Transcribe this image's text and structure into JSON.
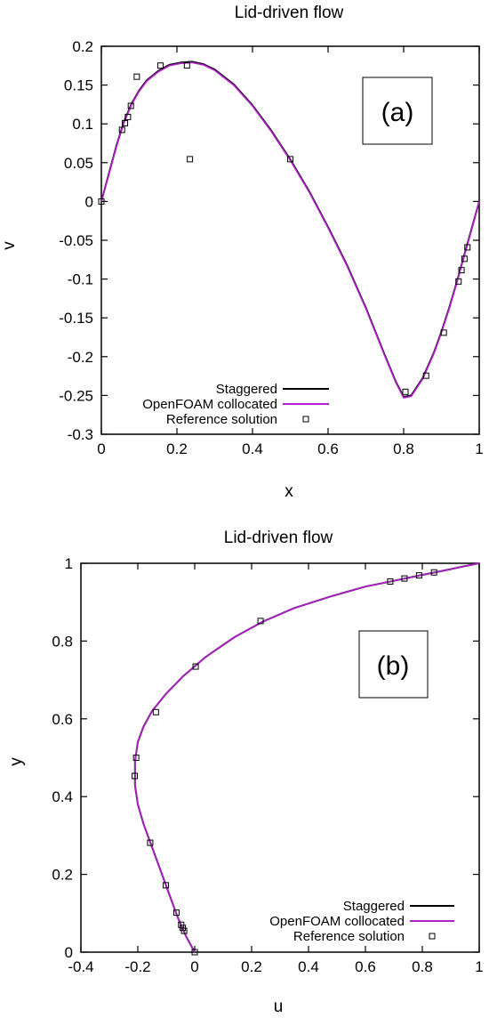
{
  "chart_data": [
    {
      "type": "line",
      "title": "Lid-driven flow",
      "xlabel": "x",
      "ylabel": "v",
      "panel_label": "(a)",
      "xlim": [
        0,
        1
      ],
      "ylim": [
        -0.3,
        0.2
      ],
      "x_ticks": [
        0,
        0.2,
        0.4,
        0.6,
        0.8,
        1
      ],
      "x_tick_labels": [
        "0",
        "0.2",
        "0.4",
        "0.6",
        "0.8",
        "1"
      ],
      "y_ticks": [
        -0.3,
        -0.25,
        -0.2,
        -0.15,
        -0.1,
        -0.05,
        0,
        0.05,
        0.1,
        0.15,
        0.2
      ],
      "y_tick_labels": [
        "-0.3",
        "-0.25",
        "-0.2",
        "-0.15",
        "-0.1",
        "-0.05",
        "0",
        "0.05",
        "0.1",
        "0.15",
        "0.2"
      ],
      "grid": false,
      "legend_position": "bottom-center",
      "series": [
        {
          "name": "Staggered",
          "color": "#000000",
          "style": "line",
          "x": [
            0,
            0.02,
            0.04,
            0.06,
            0.08,
            0.1,
            0.12,
            0.15,
            0.18,
            0.21,
            0.24,
            0.27,
            0.3,
            0.35,
            0.4,
            0.45,
            0.5,
            0.55,
            0.6,
            0.65,
            0.7,
            0.75,
            0.78,
            0.8,
            0.82,
            0.85,
            0.88,
            0.9,
            0.92,
            0.94,
            0.96,
            0.98,
            1
          ],
          "y": [
            0,
            0.036,
            0.072,
            0.103,
            0.126,
            0.143,
            0.156,
            0.168,
            0.176,
            0.179,
            0.18,
            0.177,
            0.17,
            0.151,
            0.124,
            0.091,
            0.054,
            0.013,
            -0.033,
            -0.082,
            -0.137,
            -0.198,
            -0.233,
            -0.252,
            -0.25,
            -0.228,
            -0.195,
            -0.168,
            -0.138,
            -0.105,
            -0.07,
            -0.035,
            0
          ]
        },
        {
          "name": "OpenFOAM collocated",
          "color": "#b020c8",
          "style": "line",
          "x": [
            0,
            0.02,
            0.04,
            0.06,
            0.08,
            0.1,
            0.12,
            0.15,
            0.18,
            0.21,
            0.24,
            0.27,
            0.3,
            0.35,
            0.4,
            0.45,
            0.5,
            0.55,
            0.6,
            0.65,
            0.7,
            0.75,
            0.78,
            0.8,
            0.82,
            0.85,
            0.88,
            0.9,
            0.92,
            0.94,
            0.96,
            0.98,
            1
          ],
          "y": [
            0,
            0.035,
            0.071,
            0.102,
            0.125,
            0.142,
            0.155,
            0.167,
            0.175,
            0.178,
            0.179,
            0.176,
            0.169,
            0.15,
            0.123,
            0.09,
            0.053,
            0.012,
            -0.034,
            -0.083,
            -0.138,
            -0.199,
            -0.234,
            -0.253,
            -0.251,
            -0.229,
            -0.196,
            -0.169,
            -0.139,
            -0.106,
            -0.071,
            -0.036,
            0
          ]
        },
        {
          "name": "Reference solution",
          "color": "#000000",
          "style": "marker",
          "x": [
            0,
            0.0547,
            0.0625,
            0.0703,
            0.0781,
            0.0938,
            0.1563,
            0.2266,
            0.2344,
            0.5,
            0.8047,
            0.8594,
            0.9063,
            0.9453,
            0.9531,
            0.9609,
            0.9688
          ],
          "y": [
            0,
            0.0923,
            0.1009,
            0.1089,
            0.1232,
            0.1608,
            0.1751,
            0.1753,
            0.0545,
            0.0545,
            -0.2453,
            -0.2245,
            -0.1691,
            -0.1031,
            -0.0886,
            -0.0739,
            -0.0591
          ]
        }
      ]
    },
    {
      "type": "line",
      "title": "Lid-driven flow",
      "xlabel": "u",
      "ylabel": "y",
      "panel_label": "(b)",
      "xlim": [
        -0.4,
        1
      ],
      "ylim": [
        0,
        1
      ],
      "x_ticks": [
        -0.4,
        -0.2,
        0,
        0.2,
        0.4,
        0.6,
        0.8,
        1
      ],
      "x_tick_labels": [
        "-0.4",
        "-0.2",
        "0",
        "0.2",
        "0.4",
        "0.6",
        "0.8",
        "1"
      ],
      "y_ticks": [
        0,
        0.2,
        0.4,
        0.6,
        0.8,
        1
      ],
      "y_tick_labels": [
        "0",
        "0.2",
        "0.4",
        "0.6",
        "0.8",
        "1"
      ],
      "grid": false,
      "legend_position": "bottom-right",
      "series": [
        {
          "name": "Staggered",
          "color": "#000000",
          "style": "line",
          "x": [
            0,
            -0.03,
            -0.06,
            -0.09,
            -0.12,
            -0.15,
            -0.18,
            -0.2,
            -0.21,
            -0.21,
            -0.2,
            -0.18,
            -0.15,
            -0.1,
            -0.04,
            0.04,
            0.14,
            0.24,
            0.35,
            0.48,
            0.6,
            0.7,
            0.78,
            0.84,
            0.9,
            0.95,
            1
          ],
          "y": [
            0,
            0.04,
            0.09,
            0.15,
            0.21,
            0.27,
            0.33,
            0.38,
            0.43,
            0.49,
            0.54,
            0.58,
            0.62,
            0.665,
            0.71,
            0.76,
            0.81,
            0.85,
            0.885,
            0.915,
            0.94,
            0.955,
            0.967,
            0.976,
            0.985,
            0.993,
            1
          ]
        },
        {
          "name": "OpenFOAM collocated",
          "color": "#b020c8",
          "style": "line",
          "x": [
            0,
            -0.03,
            -0.06,
            -0.09,
            -0.12,
            -0.15,
            -0.18,
            -0.2,
            -0.21,
            -0.21,
            -0.2,
            -0.18,
            -0.15,
            -0.1,
            -0.04,
            0.04,
            0.14,
            0.24,
            0.35,
            0.48,
            0.6,
            0.7,
            0.78,
            0.84,
            0.9,
            0.95,
            1
          ],
          "y": [
            0,
            0.04,
            0.09,
            0.15,
            0.21,
            0.27,
            0.33,
            0.38,
            0.43,
            0.49,
            0.54,
            0.58,
            0.62,
            0.665,
            0.71,
            0.76,
            0.81,
            0.85,
            0.885,
            0.915,
            0.94,
            0.955,
            0.967,
            0.976,
            0.985,
            0.993,
            1
          ]
        },
        {
          "name": "Reference solution",
          "color": "#000000",
          "style": "marker",
          "x": [
            0,
            -0.0372,
            -0.0419,
            -0.0477,
            -0.0643,
            -0.1015,
            -0.1566,
            -0.2109,
            -0.2058,
            -0.1364,
            0.0033,
            0.2315,
            0.6872,
            0.7372,
            0.7887,
            0.8412
          ],
          "y": [
            0,
            0.0547,
            0.0625,
            0.0703,
            0.1016,
            0.1719,
            0.2813,
            0.4531,
            0.5,
            0.6172,
            0.7344,
            0.8516,
            0.9531,
            0.9609,
            0.9688,
            0.9766
          ]
        }
      ]
    }
  ]
}
